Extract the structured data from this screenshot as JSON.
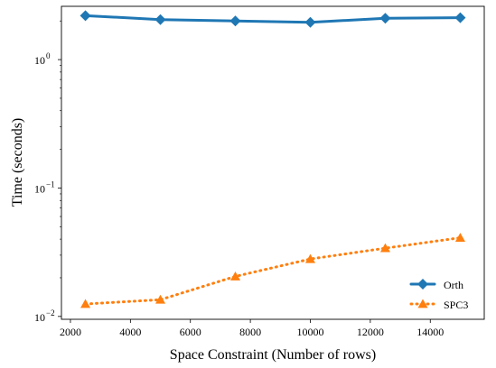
{
  "chart_data": {
    "type": "line",
    "title": "",
    "xlabel": "Space Constraint (Number of rows)",
    "ylabel": "Time (seconds)",
    "xlim": [
      1700,
      15800
    ],
    "ylim": [
      0.0095,
      2.6
    ],
    "yscale": "log",
    "grid": false,
    "legend_position": "lower-right",
    "x": [
      2500,
      5000,
      7500,
      10000,
      12500,
      15000
    ],
    "x_ticks": [
      2000,
      4000,
      6000,
      8000,
      10000,
      12000,
      14000
    ],
    "x_tick_labels": [
      "2000",
      "4000",
      "6000",
      "8000",
      "10000",
      "12000",
      "14000"
    ],
    "y_ticks": [
      {
        "value": 0.01,
        "base": "10",
        "exp": "−2"
      },
      {
        "value": 0.1,
        "base": "10",
        "exp": "−1"
      },
      {
        "value": 1,
        "base": "10",
        "exp": "0"
      }
    ],
    "series": [
      {
        "name": "Orth",
        "color": "#1f77b4",
        "marker": "diamond",
        "line_style": "solid",
        "values": [
          2.2,
          2.05,
          2.0,
          1.95,
          2.1,
          2.12
        ]
      },
      {
        "name": "SPC3",
        "color": "#ff7f0e",
        "marker": "triangle",
        "line_style": "dotted",
        "values": [
          0.0125,
          0.0135,
          0.0205,
          0.028,
          0.034,
          0.041
        ]
      }
    ]
  }
}
